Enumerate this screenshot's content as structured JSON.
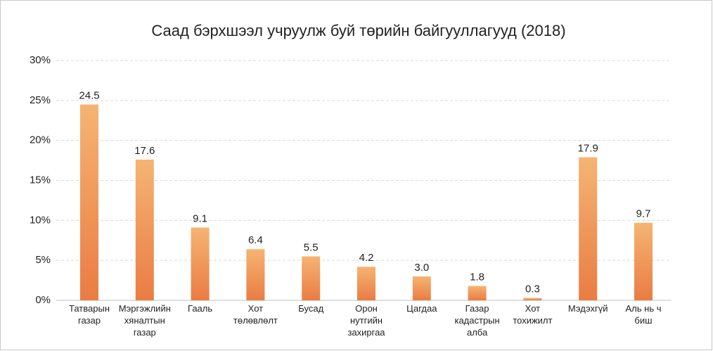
{
  "chart_data": {
    "type": "bar",
    "title": "Саад бэрхшээл учруулж буй төрийн байгууллагууд (2018)",
    "categories": [
      "Татварын газар",
      "Мэргэжлийн хяналтын газар",
      "Гааль",
      "Хот төлөвлөлт",
      "Бусад",
      "Орон нутгийн захиргаа",
      "Цагдаа",
      "Газар кадастрын алба",
      "Хот тохижилт",
      "Мэдэхгүй",
      "Аль нь ч биш"
    ],
    "values": [
      24.5,
      17.6,
      9.1,
      6.4,
      5.5,
      4.2,
      3.0,
      1.8,
      0.3,
      17.9,
      9.7
    ],
    "value_labels": [
      "24.5",
      "17.6",
      "9.1",
      "6.4",
      "5.5",
      "4.2",
      "3.0",
      "1.8",
      "0.3",
      "17.9",
      "9.7"
    ],
    "color": [
      "#f5b473",
      "#ea7c43"
    ],
    "ylim": [
      0,
      30
    ],
    "yticks": [
      {
        "value": 0,
        "label": "0%"
      },
      {
        "value": 5,
        "label": "5%"
      },
      {
        "value": 10,
        "label": "10%"
      },
      {
        "value": 15,
        "label": "15%"
      },
      {
        "value": 20,
        "label": "20%"
      },
      {
        "value": 25,
        "label": "25%"
      },
      {
        "value": 30,
        "label": "30%"
      }
    ],
    "grid": true
  }
}
